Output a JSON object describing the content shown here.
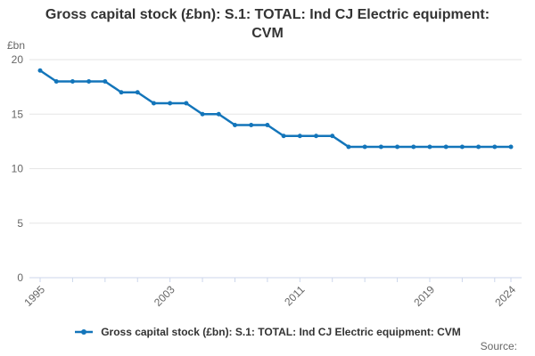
{
  "chart": {
    "title": "Gross capital stock (£bn): S.1: TOTAL: Ind CJ Electric equipment: CVM",
    "y_axis_unit": "£bn",
    "legend": {
      "label": "Gross capital stock (£bn): S.1: TOTAL: Ind CJ Electric equipment: CVM"
    },
    "source_label": "Source:"
  },
  "chart_data": {
    "type": "line",
    "title": "Gross capital stock (£bn): S.1: TOTAL: Ind CJ Electric equipment: CVM",
    "xlabel": "",
    "ylabel": "£bn",
    "x": [
      1995,
      1996,
      1997,
      1998,
      1999,
      2000,
      2001,
      2002,
      2003,
      2004,
      2005,
      2006,
      2007,
      2008,
      2009,
      2010,
      2011,
      2012,
      2013,
      2014,
      2015,
      2016,
      2017,
      2018,
      2019,
      2020,
      2021,
      2022,
      2023,
      2024
    ],
    "series": [
      {
        "name": "Gross capital stock (£bn): S.1: TOTAL: Ind CJ Electric equipment: CVM",
        "values": [
          19,
          18,
          18,
          18,
          18,
          17,
          17,
          16,
          16,
          16,
          15,
          15,
          14,
          14,
          14,
          13,
          13,
          13,
          13,
          12,
          12,
          12,
          12,
          12,
          12,
          12,
          12,
          12,
          12,
          12
        ]
      }
    ],
    "ylim": [
      0,
      20
    ],
    "yticks": [
      0,
      5,
      10,
      15,
      20
    ],
    "xtick_label_years": [
      1995,
      2003,
      2011,
      2019,
      2024
    ],
    "xtick_minor_interval_years": 2,
    "grid": true,
    "legend_position": "bottom",
    "colors": {
      "line": "#1375BA",
      "marker": "#1375BA",
      "grid": "#e6e6e6",
      "axis": "#ccd6eb",
      "tick_text": "#666666",
      "title_text": "#333333"
    }
  }
}
